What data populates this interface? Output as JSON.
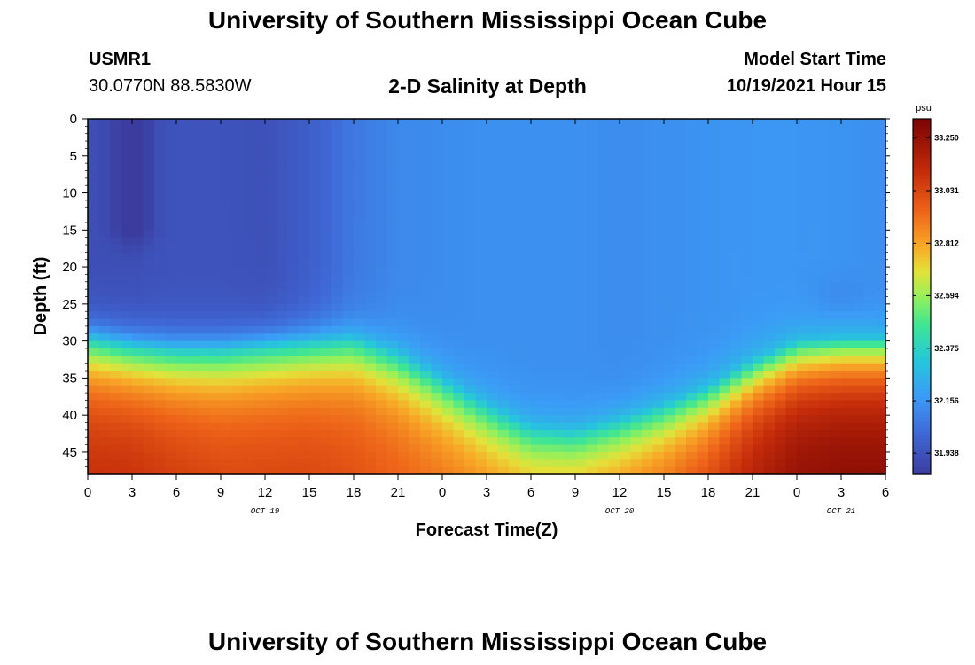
{
  "header": {
    "title": "University of Southern Mississippi Ocean Cube",
    "station": "USMR1",
    "coords": "30.0770N  88.5830W",
    "subtitle": "2-D Salinity at Depth",
    "start_label": "Model Start Time",
    "start_value": "10/19/2021 Hour 15"
  },
  "footer": {
    "title": "University of Southern Mississippi Ocean Cube"
  },
  "chart_data": {
    "type": "heatmap",
    "title": "2-D Salinity at Depth",
    "xlabel": "Forecast Time(Z)",
    "ylabel": "Depth (ft)",
    "x_tick_labels": [
      "0",
      "3",
      "6",
      "9",
      "12",
      "15",
      "18",
      "21",
      "0",
      "3",
      "6",
      "9",
      "12",
      "15",
      "18",
      "21",
      "0",
      "3",
      "6"
    ],
    "x_range_hours": [
      0,
      54
    ],
    "date_labels": [
      {
        "text": "OCT 19",
        "hour": 12
      },
      {
        "text": "OCT 20",
        "hour": 36
      },
      {
        "text": "OCT 21",
        "hour": 51
      }
    ],
    "y_tick_labels": [
      "0",
      "5",
      "10",
      "15",
      "20",
      "25",
      "30",
      "35",
      "40",
      "45"
    ],
    "y_range_ft": [
      0,
      48
    ],
    "colorbar": {
      "unit": "psu",
      "min": 31.85,
      "max": 33.33,
      "labels": [
        "33.250",
        "33.031",
        "32.812",
        "32.594",
        "32.375",
        "32.156",
        "31.938"
      ]
    },
    "halocline_depth_ft": {
      "hours": [
        0,
        3,
        6,
        9,
        12,
        15,
        18,
        21,
        24,
        27,
        30,
        33,
        36,
        39,
        42,
        45,
        48,
        51,
        54
      ],
      "depths": [
        29.5,
        30.5,
        31,
        31,
        30.5,
        30,
        29.5,
        31.5,
        35,
        38.5,
        41.5,
        42,
        40.5,
        38.5,
        36,
        32.5,
        30,
        29.5,
        29.5
      ]
    },
    "upper_salinity_psu": {
      "hours": [
        0,
        3,
        6,
        9,
        12,
        15,
        18,
        21,
        24,
        27,
        30,
        33,
        36,
        39,
        42,
        45,
        48,
        51,
        54
      ],
      "values": [
        31.92,
        31.93,
        31.94,
        31.94,
        31.93,
        31.98,
        32.07,
        32.12,
        32.13,
        32.14,
        32.14,
        32.14,
        32.13,
        32.14,
        32.15,
        32.16,
        32.16,
        32.15,
        32.14
      ]
    },
    "bottom_salinity_psu": {
      "hours": [
        0,
        3,
        6,
        9,
        12,
        15,
        18,
        21,
        24,
        27,
        30,
        33,
        36,
        39,
        42,
        45,
        48,
        51,
        54
      ],
      "values": [
        33.12,
        33.12,
        33.08,
        33.05,
        33.05,
        33.05,
        33.02,
        32.98,
        32.95,
        32.92,
        32.9,
        32.92,
        32.95,
        33.0,
        33.08,
        33.2,
        33.28,
        33.3,
        33.3
      ]
    }
  },
  "colors": {
    "frame": "#000000",
    "background": "#ffffff"
  }
}
